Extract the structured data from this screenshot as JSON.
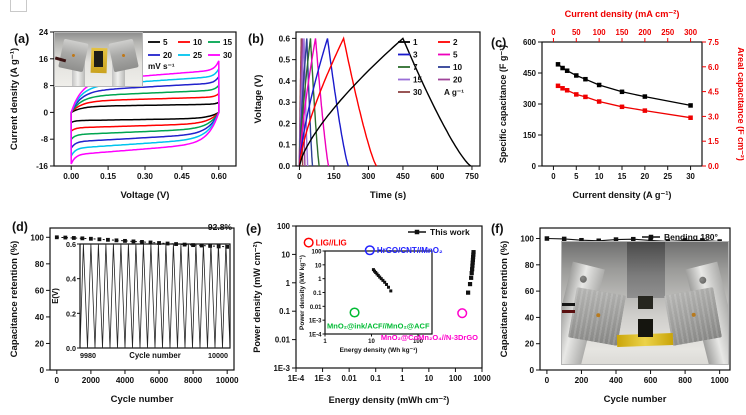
{
  "page": {
    "background": "#ffffff"
  },
  "panels": {
    "a": {
      "label": "(a)"
    },
    "b": {
      "label": "(b)"
    },
    "c": {
      "label": "(c)"
    },
    "d": {
      "label": "(d)"
    },
    "e": {
      "label": "(e)"
    },
    "f": {
      "label": "(f)"
    }
  },
  "chart_data": [
    {
      "panel": "a",
      "type": "line",
      "variant": "cyclic-voltammetry",
      "xlabel": "Voltage (V)",
      "ylabel": "Current density (A g⁻¹)",
      "legend_unit": "mV s⁻¹",
      "xlim": [
        -0.07,
        0.67
      ],
      "ylim": [
        -16,
        24
      ],
      "xtick_vals": [
        0.0,
        0.15,
        0.3,
        0.45,
        0.6
      ],
      "xticks": [
        "0.00",
        "0.15",
        "0.30",
        "0.45",
        "0.60"
      ],
      "ytick_vals": [
        -16,
        -8,
        0,
        8,
        16,
        24
      ],
      "yticks": [
        "-16",
        "-8",
        "0",
        "8",
        "16",
        "24"
      ],
      "series": [
        {
          "name": "5",
          "color": "#000000",
          "plateau_current": 2.4
        },
        {
          "name": "10",
          "color": "#ff0000",
          "plateau_current": 4.5
        },
        {
          "name": "15",
          "color": "#00a550",
          "plateau_current": 6.5
        },
        {
          "name": "20",
          "color": "#2222cc",
          "plateau_current": 8.6
        },
        {
          "name": "25",
          "color": "#00c4ee",
          "plateau_current": 10.5
        },
        {
          "name": "30",
          "color": "#ff00ff",
          "plateau_current": 12.4
        }
      ]
    },
    {
      "panel": "b",
      "type": "line",
      "variant": "galvanostatic-charge-discharge",
      "xlabel": "Time (s)",
      "ylabel": "Voltage (V)",
      "legend_unit": "A g⁻¹",
      "xlim": [
        -15,
        785
      ],
      "ylim": [
        0,
        0.63
      ],
      "xtick_vals": [
        0,
        150,
        300,
        450,
        600,
        750
      ],
      "xticks": [
        "0",
        "150",
        "300",
        "450",
        "600",
        "750"
      ],
      "ytick_vals": [
        0,
        0.1,
        0.2,
        0.3,
        0.4,
        0.5,
        0.6
      ],
      "yticks": [
        "0.0",
        "0.1",
        "0.2",
        "0.3",
        "0.4",
        "0.5",
        "0.6"
      ],
      "vmax": 0.6,
      "series": [
        {
          "name": "1",
          "color": "#000000",
          "t_peak": 450,
          "t_end": 745
        },
        {
          "name": "2",
          "color": "#ff0000",
          "t_peak": 192,
          "t_end": 335
        },
        {
          "name": "3",
          "color": "#1a1acc",
          "t_peak": 122,
          "t_end": 213
        },
        {
          "name": "5",
          "color": "#ee00bb",
          "t_peak": 70,
          "t_end": 127
        },
        {
          "name": "7",
          "color": "#2d6e2d",
          "t_peak": 48,
          "t_end": 86
        },
        {
          "name": "10",
          "color": "#2f3f96",
          "t_peak": 32,
          "t_end": 57
        },
        {
          "name": "15",
          "color": "#9a6fd8",
          "t_peak": 20,
          "t_end": 36
        },
        {
          "name": "20",
          "color": "#a0449a",
          "t_peak": 13,
          "t_end": 24
        },
        {
          "name": "30",
          "color": "#8e4444",
          "t_peak": 8,
          "t_end": 14
        }
      ]
    },
    {
      "panel": "c",
      "type": "line",
      "variant": "rate-capability",
      "xlabel": "Current density (A g⁻¹)",
      "ylabel": "Specific capacitance (F g⁻¹)",
      "xlabel_top": "Current density (mA cm⁻²)",
      "ylabel_right": "Areal capacitance (F cm⁻²)",
      "accent": "#ef0000",
      "x": [
        1,
        2,
        3,
        5,
        7,
        10,
        15,
        20,
        30
      ],
      "xlim": [
        -2.5,
        32.5
      ],
      "ylim": [
        0,
        600
      ],
      "xlim_top": [
        -25,
        325
      ],
      "ylim_right": [
        0,
        7.5
      ],
      "xtick_vals": [
        0,
        5,
        10,
        15,
        20,
        25,
        30
      ],
      "xticks": [
        "0",
        "5",
        "10",
        "15",
        "20",
        "25",
        "30"
      ],
      "ytick_vals": [
        0,
        150,
        300,
        450,
        600
      ],
      "yticks": [
        "0",
        "150",
        "300",
        "450",
        "600"
      ],
      "xtick_top_vals": [
        0,
        50,
        100,
        150,
        200,
        250,
        300
      ],
      "xticks_top": [
        "0",
        "50",
        "100",
        "150",
        "200",
        "250",
        "300"
      ],
      "ytick_right_vals": [
        0,
        1.5,
        3.0,
        4.5,
        6.0,
        7.5
      ],
      "yticks_right": [
        "0.0",
        "1.5",
        "3.0",
        "4.5",
        "6.0",
        "7.5"
      ],
      "series": [
        {
          "name": "Specific capacitance",
          "color": "#000000",
          "axis": "left",
          "values": [
            492,
            474,
            461,
            438,
            420,
            392,
            359,
            336,
            293
          ]
        },
        {
          "name": "Areal capacitance",
          "color": "#ef0000",
          "axis": "right",
          "values": [
            4.85,
            4.7,
            4.58,
            4.33,
            4.18,
            3.9,
            3.58,
            3.35,
            2.92
          ]
        }
      ]
    },
    {
      "panel": "d",
      "type": "line",
      "variant": "cycling-stability",
      "xlabel": "Cycle number",
      "ylabel": "Capacitance retention (%)",
      "annotation": "92.8%",
      "xlim": [
        -400,
        10400
      ],
      "ylim": [
        0,
        107
      ],
      "xtick_vals": [
        0,
        2000,
        4000,
        6000,
        8000,
        10000
      ],
      "xticks": [
        "0",
        "2000",
        "4000",
        "6000",
        "8000",
        "10000"
      ],
      "ytick_vals": [
        0,
        20,
        40,
        60,
        80,
        100
      ],
      "yticks": [
        "0",
        "20",
        "40",
        "60",
        "80",
        "100"
      ],
      "x_step": 500,
      "values": [
        100,
        99.8,
        99.5,
        99.2,
        98.9,
        98.5,
        98.1,
        97.7,
        97.3,
        96.9,
        96.5,
        96.1,
        95.7,
        95.3,
        94.9,
        94.5,
        94.1,
        93.8,
        93.5,
        93.1,
        92.8
      ],
      "inset": {
        "xlabel": "Cycle number",
        "ylabel": "E(V)",
        "xlim": [
          9980,
          10000
        ],
        "ylim": [
          0,
          0.6
        ],
        "xtick_vals": [
          9980,
          10000
        ],
        "xticks": [
          "9980",
          "10000"
        ],
        "ytick_vals": [
          0,
          0.2,
          0.4,
          0.6
        ],
        "yticks": [
          "0.0",
          "0.2",
          "0.4",
          "0.6"
        ],
        "cycles": 20
      }
    },
    {
      "panel": "e",
      "type": "scatter",
      "variant": "ragone-plot",
      "log": true,
      "xlabel": "Energy density (mWh cm⁻²)",
      "ylabel": "Power density (mW cm⁻²)",
      "legend": "This work",
      "xlim": [
        0.0001,
        1000
      ],
      "ylim": [
        0.001,
        100
      ],
      "xtick_vals": [
        0.0001,
        0.001,
        0.01,
        0.1,
        1,
        10,
        100,
        1000
      ],
      "xticks": [
        "1E-4",
        "1E-3",
        "0.01",
        "0.1",
        "1",
        "10",
        "100",
        "1000"
      ],
      "ytick_vals": [
        0.001,
        0.01,
        0.1,
        1,
        10,
        100
      ],
      "yticks": [
        "1E-3",
        "0.01",
        "0.1",
        "1",
        "10",
        "100"
      ],
      "this_work": {
        "energy": [
          480,
          472,
          463,
          455,
          446,
          436,
          425,
          410,
          390,
          355,
          300
        ],
        "power": [
          12,
          9.8,
          8,
          6.4,
          5.1,
          4,
          3,
          2.2,
          1.5,
          0.9,
          0.45
        ]
      },
      "references": [
        {
          "name": "LIG//LIG",
          "color": "#ff0000",
          "x": 0.0003,
          "y": 26
        },
        {
          "name": "HrGO/CNT//MnO₂",
          "color": "#2222ff",
          "x": 0.06,
          "y": 14
        },
        {
          "name": "MnO₂@ink/ACF//MnO₂@ACF",
          "color": "#00bb33",
          "x": 0.016,
          "y": 0.09
        },
        {
          "name": "MnO₂@CoMn₂O₄//N-3DrGO",
          "color": "#ff00cc",
          "x": 180,
          "y": 0.085
        }
      ],
      "inset": {
        "xlabel": "Energy density (Wh kg⁻¹)",
        "ylabel": "Power density (kW kg⁻¹)",
        "xlim": [
          1,
          200
        ],
        "ylim": [
          0.0001,
          100
        ],
        "xtick_vals": [
          1,
          10,
          100
        ],
        "xticks": [
          "1",
          "10",
          "100"
        ],
        "ytick_vals": [
          100,
          10,
          1,
          0.1,
          0.01,
          0.001,
          0.0001
        ],
        "yticks": [
          "100",
          "10",
          "1",
          "0.1",
          "0.01",
          "1E-3",
          "1E-4"
        ],
        "energy": [
          11,
          11.6,
          12.3,
          13.1,
          14,
          15,
          16.2,
          17.6,
          19.2,
          21,
          23.2,
          26
        ],
        "power": [
          4.5,
          3.5,
          2.8,
          2.2,
          1.7,
          1.3,
          1.0,
          0.75,
          0.55,
          0.38,
          0.24,
          0.13
        ]
      }
    },
    {
      "panel": "f",
      "type": "line",
      "variant": "bending-stability",
      "xlabel": "Cycle number",
      "ylabel": "Capacitance retention (%)",
      "legend": "Bending 180°",
      "xlim": [
        -40,
        1060
      ],
      "ylim": [
        0,
        108
      ],
      "xtick_vals": [
        0,
        200,
        400,
        600,
        800,
        1000
      ],
      "xticks": [
        "0",
        "200",
        "400",
        "600",
        "800",
        "1000"
      ],
      "ytick_vals": [
        0,
        20,
        40,
        60,
        80,
        100
      ],
      "yticks": [
        "0",
        "20",
        "40",
        "60",
        "80",
        "100"
      ],
      "x_step": 100,
      "values": [
        100,
        99.7,
        98.7,
        98.3,
        99.2,
        99.5,
        98.6,
        97.8,
        98.6,
        98.6,
        97.7
      ]
    }
  ]
}
